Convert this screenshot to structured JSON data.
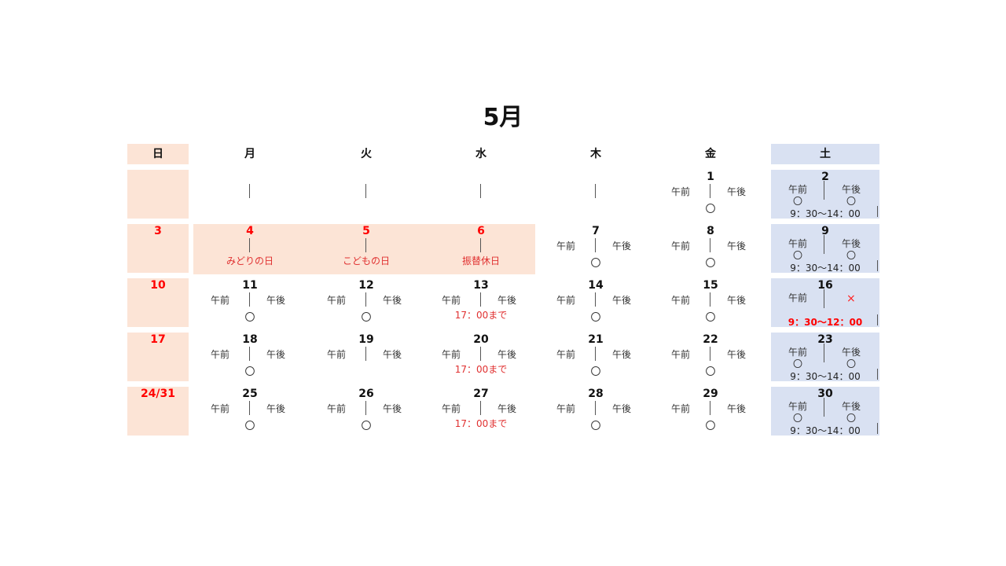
{
  "title": "5月",
  "weekdays": [
    "日",
    "月",
    "火",
    "水",
    "木",
    "金",
    "土"
  ],
  "labels": {
    "am": "午前",
    "pm": "午後",
    "open": "〇",
    "closed": "×"
  },
  "colors": {
    "sunday_bg": "#fce4d6",
    "saturday_bg": "#d9e1f2",
    "holiday_text": "#ff0000",
    "note_text": "#e03030"
  },
  "sundays": [
    "",
    "3",
    "10",
    "17",
    "24/31"
  ],
  "rows": [
    {
      "mon": {
        "day": ""
      },
      "tue": {
        "day": ""
      },
      "wed": {
        "day": ""
      },
      "thu": {
        "day": ""
      },
      "fri": {
        "day": "1",
        "mark": "〇"
      },
      "sat": {
        "day": "2",
        "am": "〇",
        "pm": "〇",
        "hours": "9：30～14：00"
      }
    },
    {
      "mon": {
        "day": "4",
        "holiday": "みどりの日"
      },
      "tue": {
        "day": "5",
        "holiday": "こどもの日"
      },
      "wed": {
        "day": "6",
        "holiday": "振替休日"
      },
      "thu": {
        "day": "7",
        "mark": "〇"
      },
      "fri": {
        "day": "8",
        "mark": "〇"
      },
      "sat": {
        "day": "9",
        "am": "〇",
        "pm": "〇",
        "hours": "9：30～14：00"
      }
    },
    {
      "mon": {
        "day": "11",
        "mark": "〇"
      },
      "tue": {
        "day": "12",
        "mark": "〇"
      },
      "wed": {
        "day": "13",
        "note": "17：00まで"
      },
      "thu": {
        "day": "14",
        "mark": "〇"
      },
      "fri": {
        "day": "15",
        "mark": "〇"
      },
      "sat": {
        "day": "16",
        "pm_closed": "×",
        "hours": "9：30～12：00"
      }
    },
    {
      "mon": {
        "day": "18",
        "mark": "〇"
      },
      "tue": {
        "day": "19",
        "mark": ""
      },
      "wed": {
        "day": "20",
        "note": "17：00まで"
      },
      "thu": {
        "day": "21",
        "mark": "〇"
      },
      "fri": {
        "day": "22",
        "mark": "〇"
      },
      "sat": {
        "day": "23",
        "am": "〇",
        "pm": "〇",
        "hours": "9：30～14：00"
      }
    },
    {
      "mon": {
        "day": "25",
        "mark": "〇"
      },
      "tue": {
        "day": "26",
        "mark": "〇"
      },
      "wed": {
        "day": "27",
        "note": "17：00まで"
      },
      "thu": {
        "day": "28",
        "mark": "〇"
      },
      "fri": {
        "day": "29",
        "mark": "〇"
      },
      "sat": {
        "day": "30",
        "am": "〇",
        "pm": "〇",
        "hours": "9：30～14：00"
      }
    }
  ]
}
